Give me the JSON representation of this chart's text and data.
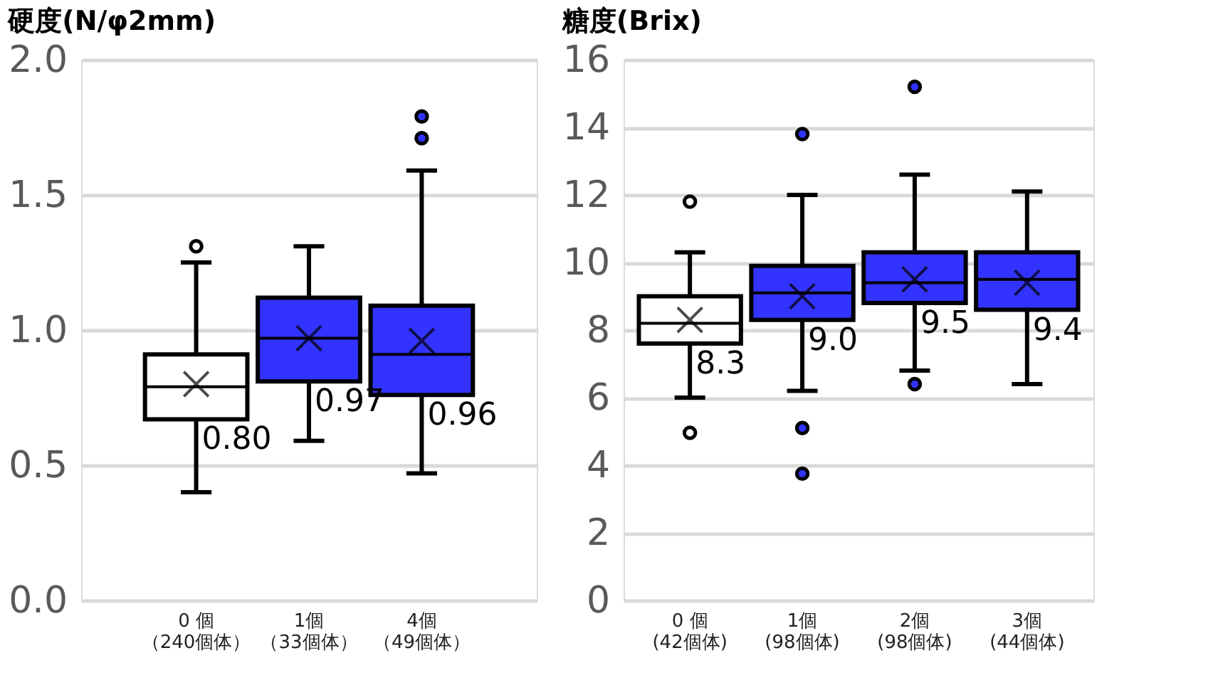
{
  "chart_data": [
    {
      "type": "box",
      "title": "硬度(N/φ2mm)",
      "categories": [
        "0 個（240個体）",
        "1個（33個体）",
        "4個（49個体）"
      ],
      "colors": [
        "#ffffff",
        "#3333ff",
        "#3333ff"
      ],
      "boxes": [
        {
          "low": 0.4,
          "q1": 0.67,
          "median": 0.79,
          "q3": 0.91,
          "high": 1.25,
          "mean": 0.8,
          "outliers": [
            1.31
          ]
        },
        {
          "low": 0.59,
          "q1": 0.81,
          "median": 0.97,
          "q3": 1.12,
          "high": 1.31,
          "mean": 0.97
        },
        {
          "low": 0.47,
          "q1": 0.76,
          "median": 0.91,
          "q3": 1.09,
          "high": 1.59,
          "mean": 0.96,
          "outliers": [
            1.71,
            1.79
          ]
        }
      ],
      "value_labels": [
        "0.80",
        "0.97",
        "0.96"
      ],
      "ylim": [
        0,
        2.0
      ],
      "yticks": [
        {
          "value": 0,
          "label": "0.0"
        },
        {
          "value": 0.5,
          "label": "0.5"
        },
        {
          "value": 1,
          "label": "1.0"
        },
        {
          "value": 1.5,
          "label": "1.5"
        },
        {
          "value": 2,
          "label": "2.0"
        }
      ],
      "grid": "y"
    },
    {
      "type": "box",
      "title": "糖度(Brix)",
      "categories": [
        "0 個(42個体)",
        "1個(98個体)",
        "2個(98個体)",
        "3個(44個体)"
      ],
      "colors": [
        "#ffffff",
        "#3333ff",
        "#3333ff",
        "#3333ff"
      ],
      "boxes": [
        {
          "low": 6.0,
          "q1": 7.6,
          "median": 8.2,
          "q3": 9.0,
          "high": 10.3,
          "mean": 8.3,
          "outliers": [
            4.96,
            11.8
          ]
        },
        {
          "low": 6.2,
          "q1": 8.3,
          "median": 9.1,
          "q3": 9.9,
          "high": 12.0,
          "mean": 9.0,
          "outliers": [
            3.75,
            5.1,
            13.8
          ]
        },
        {
          "low": 6.8,
          "q1": 8.8,
          "median": 9.4,
          "q3": 10.3,
          "high": 12.6,
          "mean": 9.5,
          "outliers": [
            6.4,
            15.2
          ]
        },
        {
          "low": 6.4,
          "q1": 8.6,
          "median": 9.5,
          "q3": 10.3,
          "high": 12.1,
          "mean": 9.4
        }
      ],
      "value_labels": [
        "8.3",
        "9.0",
        "9.5",
        "9.4"
      ],
      "ylim": [
        0,
        16
      ],
      "yticks": [
        0,
        2,
        4,
        6,
        8,
        10,
        12,
        14,
        16
      ],
      "grid": "y"
    }
  ]
}
